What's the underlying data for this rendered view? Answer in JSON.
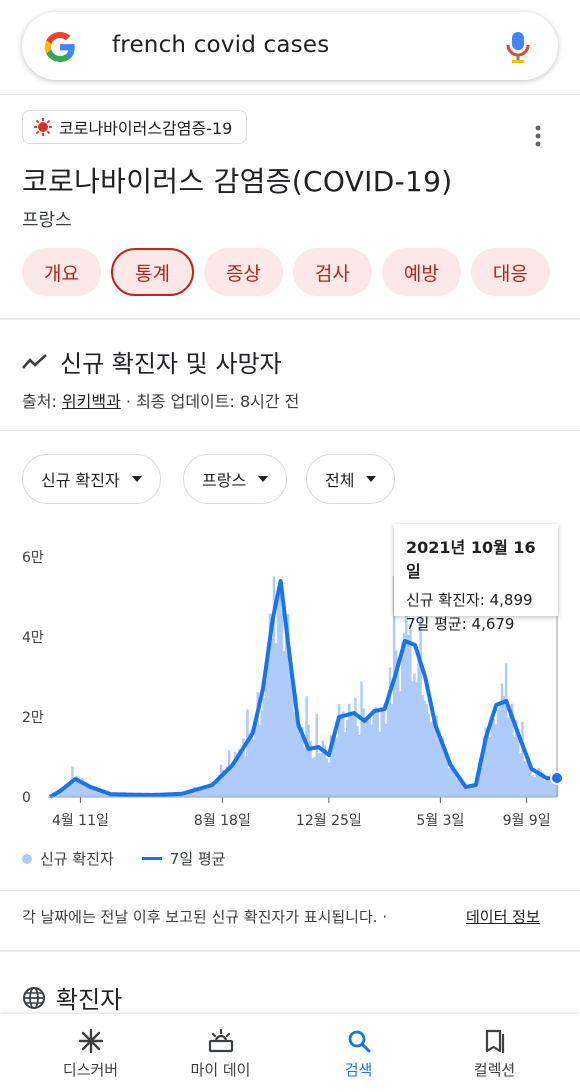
{
  "search": {
    "query": "french covid cases"
  },
  "card": {
    "topic_chip": "코로나바이러스감염증-19",
    "title": "코로나바이러스 감염증(COVID-19)",
    "subtitle": "프랑스",
    "tabs": [
      {
        "label": "개요"
      },
      {
        "label": "통계"
      },
      {
        "label": "증상"
      },
      {
        "label": "검사"
      },
      {
        "label": "예방"
      },
      {
        "label": "대응"
      }
    ],
    "active_tab": "통계"
  },
  "section": {
    "title": "신규 확진자 및 사망자",
    "source_prefix": "출처: ",
    "source_link": "위키백과",
    "updated": " · 최종 업데이트: 8시간 전"
  },
  "filters": {
    "metric": "신규 확진자",
    "region": "프랑스",
    "range": "전체"
  },
  "tooltip": {
    "date": "2021년 10월 16일",
    "row1": "신규 확진자: 4,899",
    "row2": "7일 평균: 4,679"
  },
  "legend": {
    "bars": "신규 확진자",
    "line": "7일 평균"
  },
  "note": {
    "text": "각 날짜에는 전날 이후 보고된 신규 확진자가 표시됩니다. ·",
    "link": "데이터 정보"
  },
  "next_section": {
    "title": "확진자"
  },
  "nav": [
    {
      "label": "디스커버",
      "icon": "asterisk-icon"
    },
    {
      "label": "마이 데이",
      "icon": "sunrise-icon"
    },
    {
      "label": "검색",
      "icon": "search-icon"
    },
    {
      "label": "컬렉션",
      "icon": "bookmark-icon"
    }
  ],
  "colors": {
    "accent": "#1a73e8",
    "bars": "#aecbfa",
    "tab_bg": "#fce8e6",
    "tab_text": "#b3261e"
  },
  "chart_data": {
    "type": "area",
    "series": [
      {
        "name": "신규 확진자",
        "kind": "bar"
      },
      {
        "name": "7일 평균",
        "kind": "line"
      }
    ],
    "x_ticks": [
      "4월 11일",
      "8월 18일",
      "12월 25일",
      "5월 3일",
      "9월 9일"
    ],
    "y_ticks": [
      "0",
      "2만",
      "4만",
      "6만"
    ],
    "ylim": [
      0,
      60000
    ],
    "avg_7day": [
      {
        "t": 0.0,
        "y": 0
      },
      {
        "t": 0.02,
        "y": 1500
      },
      {
        "t": 0.05,
        "y": 4500
      },
      {
        "t": 0.08,
        "y": 2500
      },
      {
        "t": 0.12,
        "y": 700
      },
      {
        "t": 0.2,
        "y": 500
      },
      {
        "t": 0.26,
        "y": 800
      },
      {
        "t": 0.32,
        "y": 3000
      },
      {
        "t": 0.36,
        "y": 8000
      },
      {
        "t": 0.4,
        "y": 16000
      },
      {
        "t": 0.42,
        "y": 27000
      },
      {
        "t": 0.44,
        "y": 45000
      },
      {
        "t": 0.455,
        "y": 54000
      },
      {
        "t": 0.47,
        "y": 38000
      },
      {
        "t": 0.49,
        "y": 18000
      },
      {
        "t": 0.51,
        "y": 12000
      },
      {
        "t": 0.53,
        "y": 12500
      },
      {
        "t": 0.55,
        "y": 10500
      },
      {
        "t": 0.57,
        "y": 20000
      },
      {
        "t": 0.6,
        "y": 21000
      },
      {
        "t": 0.62,
        "y": 19000
      },
      {
        "t": 0.64,
        "y": 21500
      },
      {
        "t": 0.66,
        "y": 22000
      },
      {
        "t": 0.68,
        "y": 30000
      },
      {
        "t": 0.7,
        "y": 39000
      },
      {
        "t": 0.72,
        "y": 38000
      },
      {
        "t": 0.74,
        "y": 30000
      },
      {
        "t": 0.76,
        "y": 18000
      },
      {
        "t": 0.79,
        "y": 8000
      },
      {
        "t": 0.82,
        "y": 2500
      },
      {
        "t": 0.84,
        "y": 3000
      },
      {
        "t": 0.86,
        "y": 15000
      },
      {
        "t": 0.88,
        "y": 23000
      },
      {
        "t": 0.9,
        "y": 24000
      },
      {
        "t": 0.92,
        "y": 17000
      },
      {
        "t": 0.95,
        "y": 7000
      },
      {
        "t": 0.98,
        "y": 4700
      }
    ]
  }
}
